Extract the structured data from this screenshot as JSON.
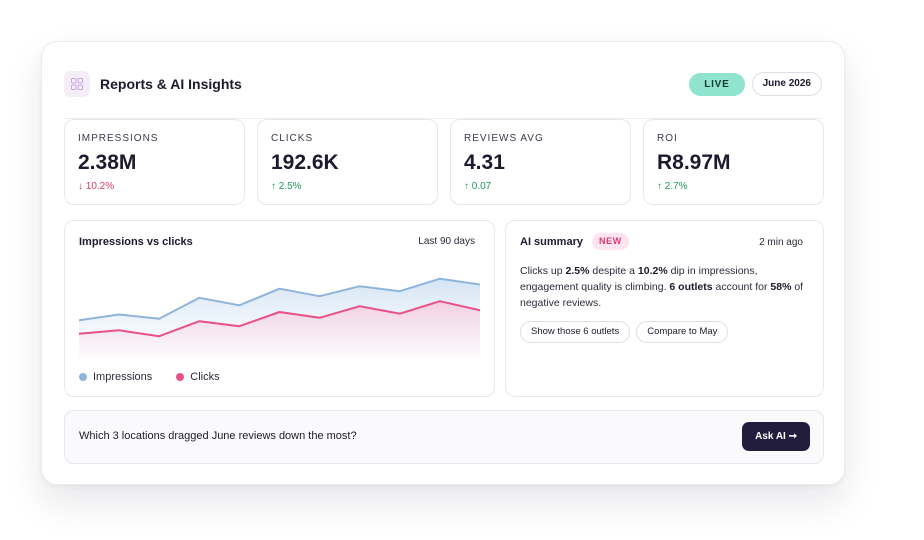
{
  "header": {
    "title": "Reports & AI Insights",
    "icon": "grid-icon",
    "live_label": "LIVE",
    "period_label": "June 2026"
  },
  "kpis": [
    {
      "label": "IMPRESSIONS",
      "value": "2.38M",
      "delta": "10.2%",
      "direction": "down",
      "arrow": "↓"
    },
    {
      "label": "CLICKS",
      "value": "192.6K",
      "delta": "2.5%",
      "direction": "up",
      "arrow": "↑"
    },
    {
      "label": "REVIEWS AVG",
      "value": "4.31",
      "delta": "0.07",
      "direction": "up",
      "arrow": "↑"
    },
    {
      "label": "ROI",
      "value": "R8.97M",
      "delta": "2.7%",
      "direction": "up",
      "arrow": "↑"
    }
  ],
  "chart": {
    "title": "Impressions vs clicks",
    "range_label": "Last 90 days",
    "legend": [
      "Impressions",
      "Clicks"
    ]
  },
  "chart_data": {
    "type": "area",
    "title": "Impressions vs clicks",
    "x": [
      1,
      2,
      3,
      4,
      5,
      6,
      7,
      8,
      9,
      10,
      11
    ],
    "series": [
      {
        "name": "Impressions",
        "color": "#8fb4db",
        "values": [
          44,
          51,
          46,
          71,
          62,
          82,
          73,
          85,
          79,
          94,
          87
        ]
      },
      {
        "name": "Clicks",
        "color": "#e8508a",
        "values": [
          28,
          32,
          25,
          43,
          37,
          54,
          47,
          61,
          52,
          67,
          56
        ]
      }
    ],
    "ylim": [
      0,
      120
    ],
    "grid": false,
    "legend_position": "bottom-left"
  },
  "ai_summary": {
    "title": "AI summary",
    "badge": "NEW",
    "timestamp": "2 min ago",
    "text_parts": [
      "Clicks up ",
      "2.5%",
      " despite a ",
      "10.2%",
      " dip in impressions, engagement quality is climbing. ",
      "6 outlets",
      " account for ",
      "58%",
      " of negative reviews."
    ],
    "actions": [
      "Show those 6 outlets",
      "Compare to May"
    ]
  },
  "ask": {
    "question": "Which 3 locations dragged June reviews down the most?",
    "button_label": "Ask AI ➞"
  },
  "colors": {
    "accent_dark": "#231d3d",
    "live": "#8fe3cf",
    "down": "#d63b63",
    "up": "#1f9a5b",
    "impressions": "#8fb4db",
    "clicks": "#e8508a"
  }
}
